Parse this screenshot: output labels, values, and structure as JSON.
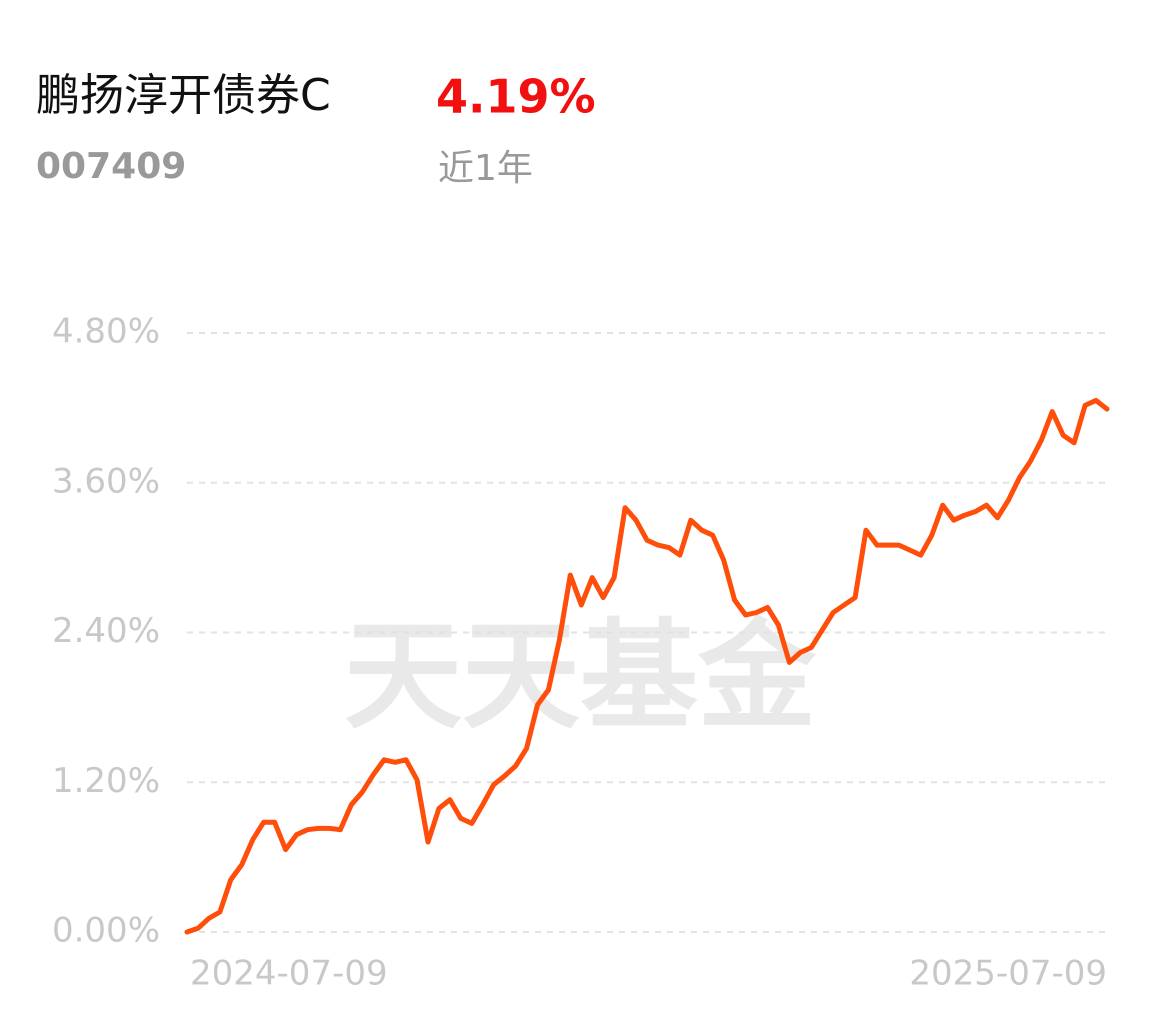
{
  "header": {
    "title": "鹏扬淳开债券C",
    "code": "007409",
    "return": "4.19%",
    "period": "近1年"
  },
  "watermark": "天天基金",
  "chart_data": {
    "type": "line",
    "categories": [
      "2024-07-09",
      null,
      null,
      null,
      null,
      null,
      null,
      null,
      null,
      null,
      null,
      null,
      null,
      null,
      null,
      null,
      null,
      null,
      null,
      null,
      null,
      null,
      null,
      null,
      null,
      null,
      null,
      null,
      null,
      null,
      null,
      null,
      null,
      null,
      null,
      null,
      null,
      null,
      null,
      null,
      null,
      null,
      null,
      null,
      null,
      null,
      null,
      null,
      null,
      null,
      null,
      null,
      null,
      null,
      null,
      null,
      null,
      null,
      null,
      null,
      null,
      null,
      null,
      null,
      null,
      null,
      null,
      null,
      null,
      null,
      null,
      null,
      null,
      null,
      null,
      null,
      null,
      null,
      null,
      null,
      null,
      null,
      null,
      null,
      "2025-07-09"
    ],
    "series": [
      {
        "color": "#ff4d0a",
        "values": [
          0,
          0.03,
          0.11,
          0.16,
          0.42,
          0.54,
          0.74,
          0.88,
          0.88,
          0.66,
          0.78,
          0.82,
          0.83,
          0.83,
          0.82,
          1.02,
          1.12,
          1.26,
          1.38,
          1.36,
          1.38,
          1.22,
          0.72,
          0.99,
          1.06,
          0.91,
          0.87,
          1.02,
          1.18,
          1.25,
          1.33,
          1.47,
          1.82,
          1.94,
          2.34,
          2.86,
          2.62,
          2.84,
          2.68,
          2.84,
          3.4,
          3.3,
          3.14,
          3.1,
          3.08,
          3.02,
          3.3,
          3.22,
          3.18,
          2.98,
          2.66,
          2.54,
          2.56,
          2.6,
          2.46,
          2.16,
          2.24,
          2.28,
          2.42,
          2.56,
          2.62,
          2.68,
          3.22,
          3.1,
          3.1,
          3.1,
          3.06,
          3.02,
          3.18,
          3.42,
          3.3,
          3.34,
          3.37,
          3.42,
          3.32,
          3.46,
          3.64,
          3.77,
          3.94,
          4.17,
          3.98,
          3.92,
          4.22,
          4.26,
          4.19
        ]
      }
    ],
    "ylim": [
      0,
      4.8
    ],
    "yticks": [
      {
        "value": 0,
        "label": "0.00%"
      },
      {
        "value": 1.2,
        "label": "1.20%"
      },
      {
        "value": 2.4,
        "label": "2.40%"
      },
      {
        "value": 3.6,
        "label": "3.60%"
      },
      {
        "value": 4.8,
        "label": "4.80%"
      }
    ],
    "grid": true
  }
}
